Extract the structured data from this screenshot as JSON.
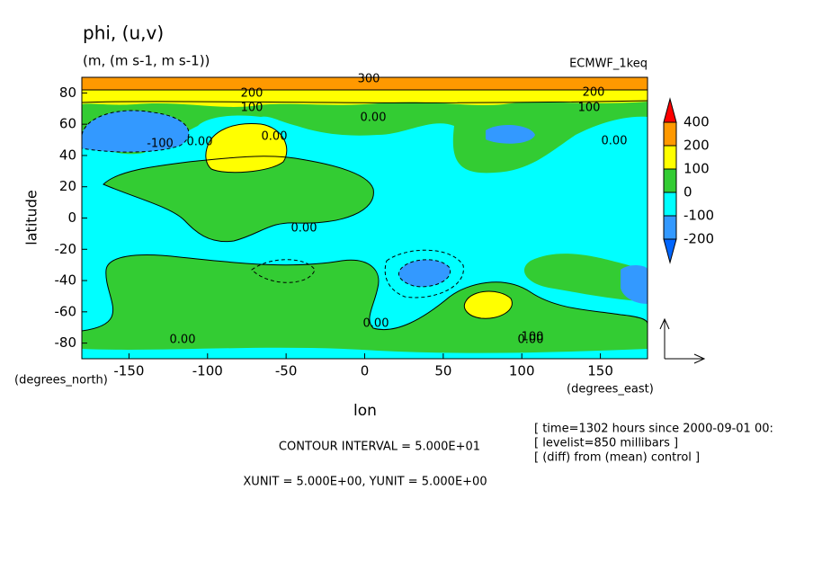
{
  "chart_data": {
    "type": "contour",
    "title": "phi, (u,v)",
    "subtitle": "(m, (m s-1, m s-1))",
    "source_label": "ECMWF_1keq",
    "x_label": "lon",
    "y_label": "latitude",
    "x_unit_label": "(degrees_east)",
    "y_unit_label": "(degrees_north)",
    "xlim": [
      -180,
      180
    ],
    "ylim": [
      -90,
      90
    ],
    "xticks": [
      -150,
      -100,
      -50,
      0,
      50,
      100,
      150
    ],
    "yticks": [
      -80,
      -60,
      -40,
      -20,
      0,
      20,
      40,
      60,
      80
    ],
    "levels": [
      400,
      200,
      100,
      0,
      -100,
      -200
    ],
    "level_colors": [
      "#ff0000",
      "#ff9900",
      "#ffff00",
      "#33cc33",
      "#00ffff",
      "#3399ff",
      "#0066ff"
    ],
    "contour_labels": [
      "300",
      "200",
      "200",
      "100",
      "100",
      "-100",
      "0.00",
      "0.00",
      "0.00",
      "0.00",
      "0.00",
      "0.00",
      "0.00",
      "100",
      "0.00"
    ],
    "notes": [
      "CONTOUR INTERVAL = 5.000E+01",
      "XUNIT = 5.000E+00, YUNIT = 5.000E+00"
    ],
    "info": [
      "[ time=1302 hours since 2000-09-01 00:",
      "[ levelist=850 millibars ]",
      "[ (diff) from (mean) control ]"
    ]
  }
}
